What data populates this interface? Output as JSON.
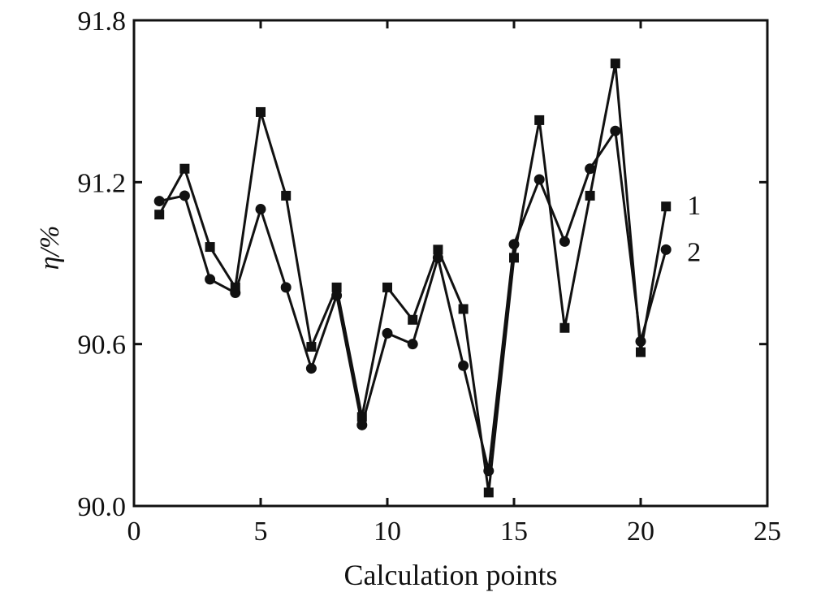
{
  "chart_data": {
    "type": "line",
    "title": "",
    "xlabel": "Calculation points",
    "ylabel": "η/%",
    "xlim": [
      0,
      25
    ],
    "ylim": [
      90.0,
      91.8
    ],
    "xticks": [
      "0",
      "5",
      "10",
      "15",
      "20",
      "25"
    ],
    "yticks": [
      "90.0",
      "90.6",
      "91.2",
      "91.8"
    ],
    "grid": false,
    "legend": "inline labels at right end of series",
    "x": [
      1,
      2,
      3,
      4,
      5,
      6,
      7,
      8,
      9,
      10,
      11,
      12,
      13,
      14,
      15,
      16,
      17,
      18,
      19,
      20,
      21
    ],
    "series": [
      {
        "name": "1",
        "marker": "square",
        "values": [
          91.08,
          91.25,
          90.96,
          90.81,
          91.46,
          91.15,
          90.59,
          90.81,
          90.33,
          90.81,
          90.69,
          90.95,
          90.73,
          90.05,
          90.92,
          91.43,
          90.66,
          91.15,
          91.64,
          90.57,
          91.11
        ]
      },
      {
        "name": "2",
        "marker": "circle",
        "values": [
          91.13,
          91.15,
          90.84,
          90.79,
          91.1,
          90.81,
          90.51,
          90.78,
          90.3,
          90.64,
          90.6,
          90.92,
          90.52,
          90.13,
          90.97,
          91.21,
          90.98,
          91.25,
          91.39,
          90.61,
          90.95
        ]
      }
    ],
    "colors": {
      "line": "#111111",
      "background": "#ffffff"
    }
  }
}
